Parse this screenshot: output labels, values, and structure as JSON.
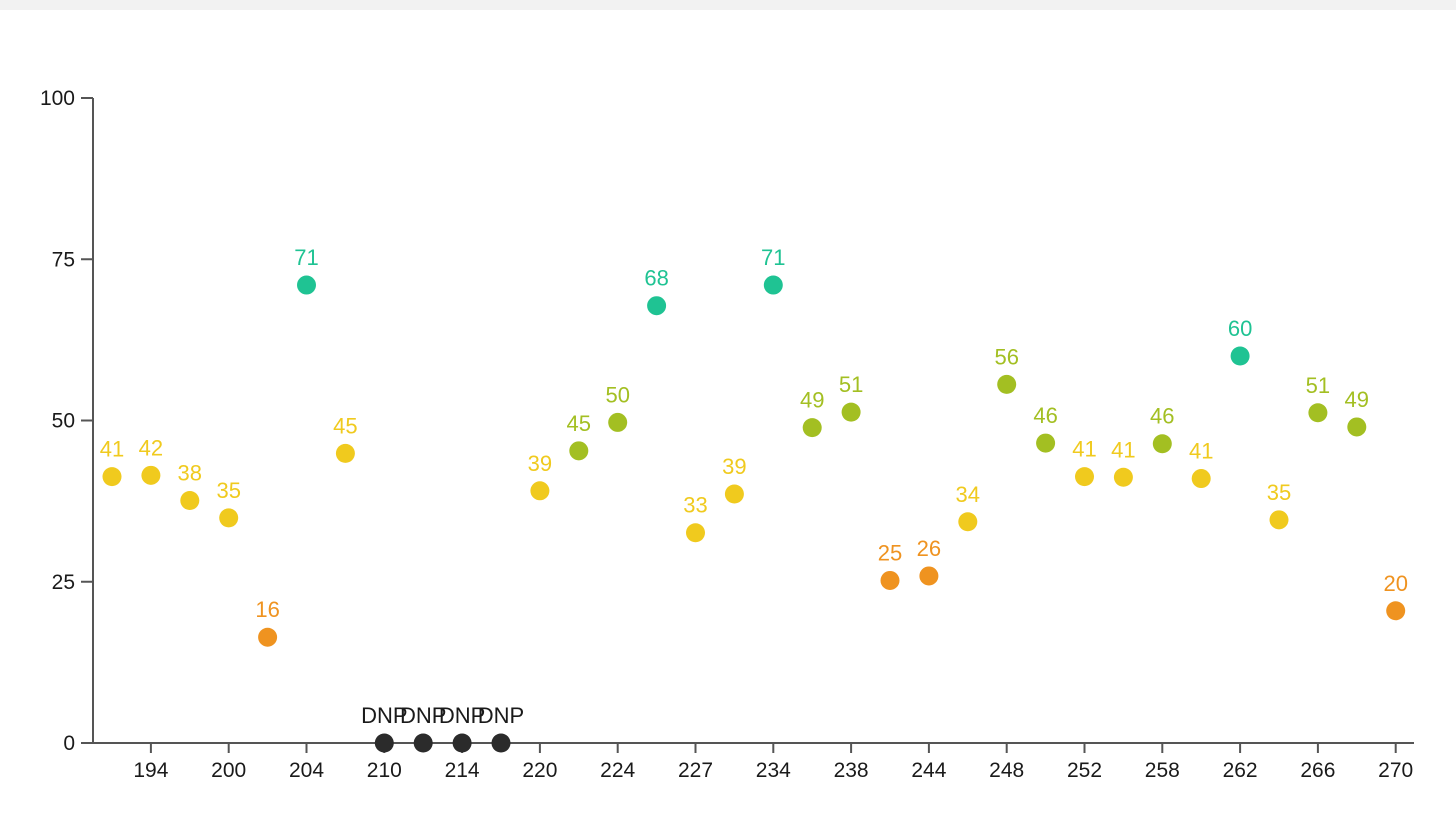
{
  "chart_data": {
    "type": "scatter",
    "title": "",
    "xlabel": "",
    "ylabel": "",
    "ylim": [
      0,
      100
    ],
    "y_ticks": [
      "0",
      "25",
      "50",
      "75",
      "100"
    ],
    "x_tick_labels": [
      "194",
      "200",
      "204",
      "210",
      "214",
      "220",
      "224",
      "227",
      "234",
      "238",
      "244",
      "248",
      "252",
      "258",
      "262",
      "266",
      "270"
    ],
    "grid": false,
    "legend": "none",
    "points": [
      {
        "value": 41.3,
        "label": "41"
      },
      {
        "value": 41.5,
        "label": "42"
      },
      {
        "value": 37.6,
        "label": "38"
      },
      {
        "value": 34.9,
        "label": "35"
      },
      {
        "value": 16.4,
        "label": "16"
      },
      {
        "value": 71.0,
        "label": "71"
      },
      {
        "value": 44.9,
        "label": "45"
      },
      {
        "value": 0,
        "label": "DNP"
      },
      {
        "value": 0,
        "label": "DNP"
      },
      {
        "value": 0,
        "label": "DNP"
      },
      {
        "value": 0,
        "label": "DNP"
      },
      {
        "value": 39.1,
        "label": "39"
      },
      {
        "value": 45.3,
        "label": "45"
      },
      {
        "value": 49.7,
        "label": "50"
      },
      {
        "value": 67.8,
        "label": "68"
      },
      {
        "value": 32.6,
        "label": "33"
      },
      {
        "value": 38.6,
        "label": "39"
      },
      {
        "value": 71.0,
        "label": "71"
      },
      {
        "value": 48.9,
        "label": "49"
      },
      {
        "value": 51.3,
        "label": "51"
      },
      {
        "value": 25.2,
        "label": "25"
      },
      {
        "value": 25.9,
        "label": "26"
      },
      {
        "value": 34.3,
        "label": "34"
      },
      {
        "value": 55.6,
        "label": "56"
      },
      {
        "value": 46.5,
        "label": "46"
      },
      {
        "value": 41.3,
        "label": "41"
      },
      {
        "value": 41.2,
        "label": "41"
      },
      {
        "value": 46.4,
        "label": "46"
      },
      {
        "value": 41.0,
        "label": "41"
      },
      {
        "value": 60.0,
        "label": "60"
      },
      {
        "value": 34.6,
        "label": "35"
      },
      {
        "value": 51.2,
        "label": "51"
      },
      {
        "value": 49.0,
        "label": "49"
      },
      {
        "value": 20.5,
        "label": "20"
      }
    ],
    "colors": {
      "teal": "#1fc393",
      "yellow_green": "#a3bf22",
      "yellow": "#f0ca1e",
      "orange": "#ef9320",
      "dnp": "#2b2b2b",
      "axis": "#555555"
    }
  }
}
